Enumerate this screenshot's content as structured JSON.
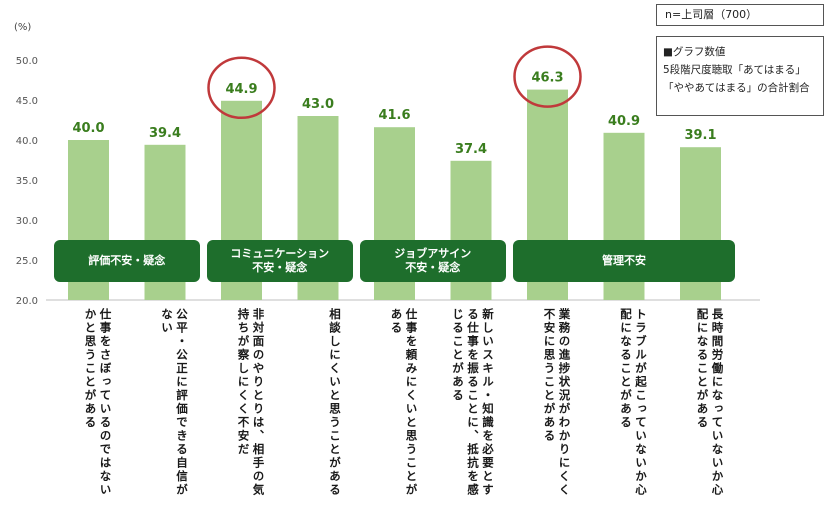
{
  "legend": {
    "n_label": "n=上司層（700）"
  },
  "note": {
    "line1": "■グラフ数値",
    "line2": "5段階尺度聴取「あてはまる」",
    "line3": "「ややあてはまる」の合計割合"
  },
  "chart_data": {
    "type": "bar",
    "ylabel": "(%)",
    "ylim": [
      20.0,
      50.0
    ],
    "yticks": [
      "20.0",
      "25.0",
      "30.0",
      "35.0",
      "40.0",
      "45.0",
      "50.0"
    ],
    "grid": false,
    "bar_color": "#a8d08d",
    "value_label_color": "#3a7d1e",
    "highlight_color": "#c0393b",
    "categories": [
      "仕事をさぼっているのではないかと思うことがある",
      "公平・公正に評価できる自信がない",
      "非対面のやりとりは、相手の気持ちが察しにくく不安だ",
      "相談しにくいと思うことがある",
      "仕事を頼みにくいと思うことがある",
      "新しいスキル・知識を必要とする仕事を振ることに、抵抗を感じることがある",
      "業務の進捗状況がわかりにくく不安に思うことがある",
      "トラブルが起こっていないか心配になることがある",
      "長時間労働になっていないか心配になることがある"
    ],
    "values": [
      40.0,
      39.4,
      44.9,
      43.0,
      41.6,
      37.4,
      46.3,
      40.9,
      39.1
    ],
    "value_labels": [
      "40.0",
      "39.4",
      "44.9",
      "43.0",
      "41.6",
      "37.4",
      "46.3",
      "40.9",
      "39.1"
    ],
    "highlighted": [
      2,
      6
    ],
    "groups": [
      {
        "label": "評価不安・疑念",
        "start": 0,
        "end": 1
      },
      {
        "label": "コミュニケーション\n不安・疑念",
        "start": 2,
        "end": 3
      },
      {
        "label": "ジョブアサイン\n不安・疑念",
        "start": 4,
        "end": 5
      },
      {
        "label": "管理不安",
        "start": 6,
        "end": 8
      }
    ]
  }
}
